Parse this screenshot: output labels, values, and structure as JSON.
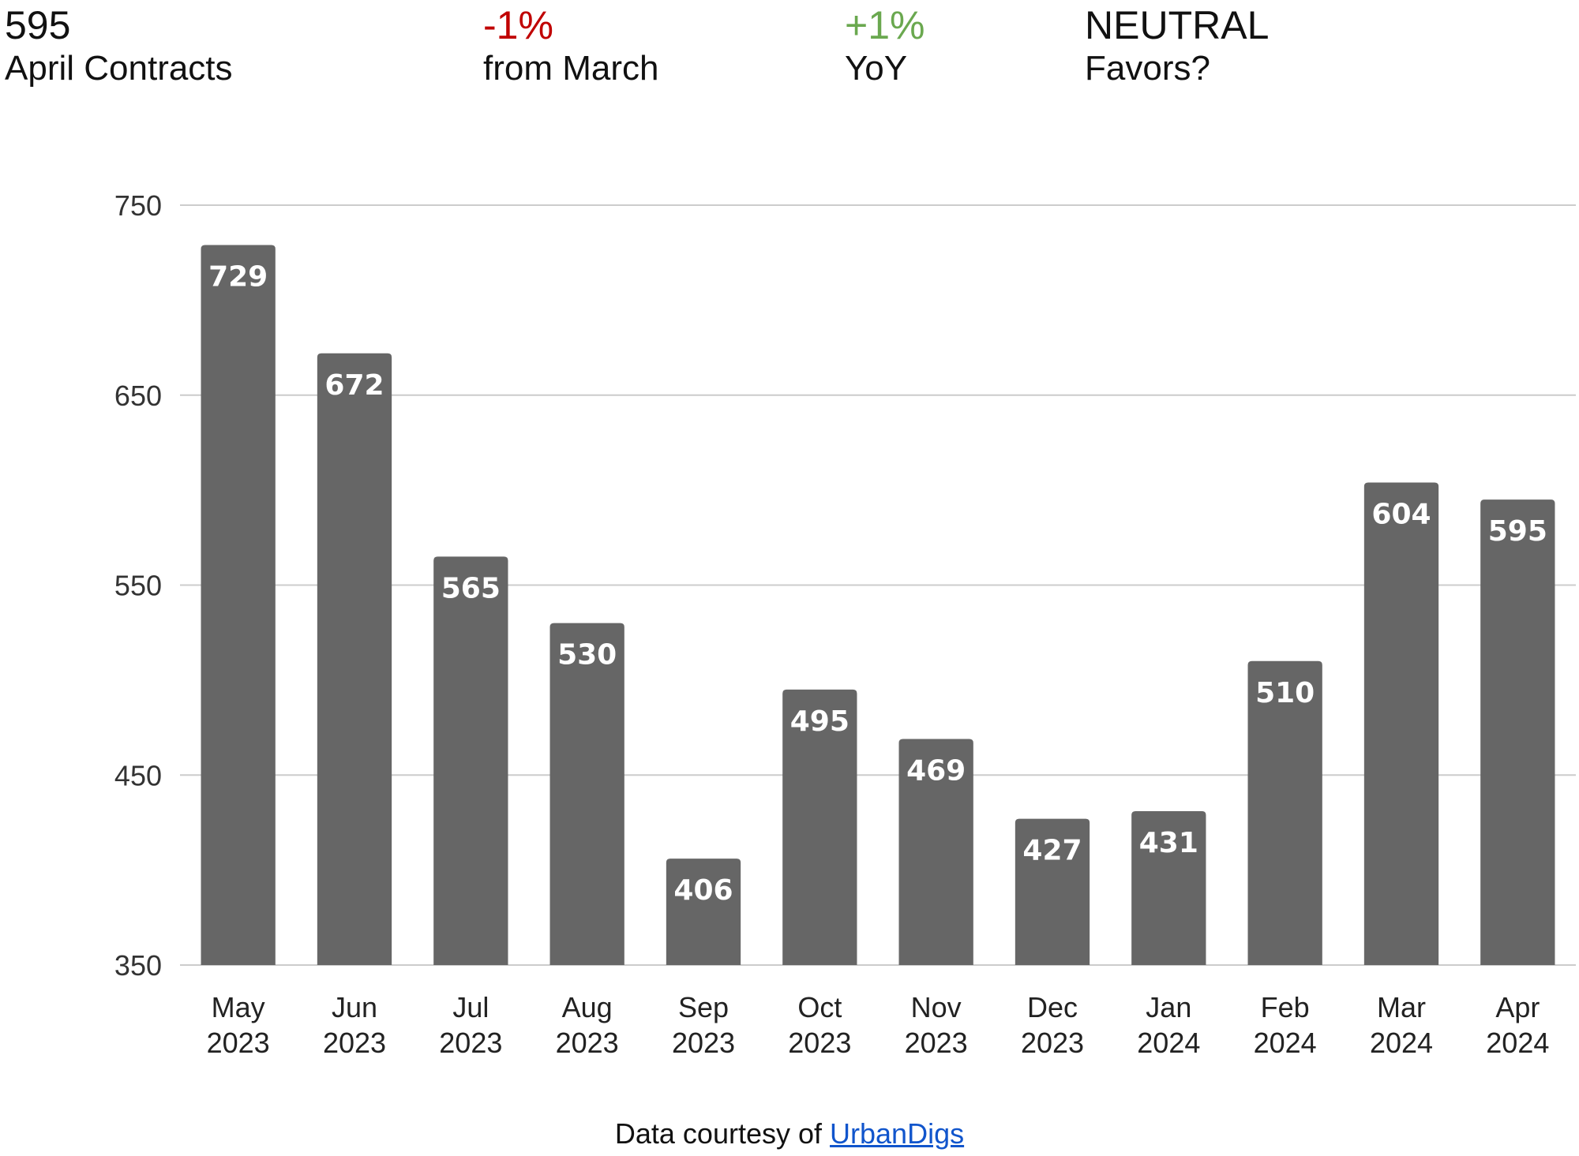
{
  "header": {
    "stats": [
      {
        "value": "595",
        "label": "April Contracts",
        "color": "#111111"
      },
      {
        "value": "-1%",
        "label": "from March",
        "color": "#c00000"
      },
      {
        "value": "+1%",
        "label": "YoY",
        "color": "#6aa84f"
      },
      {
        "value": "NEUTRAL",
        "label": "Favors?",
        "color": "#111111"
      }
    ]
  },
  "footer": {
    "prefix": "Data courtesy of ",
    "link_text": "UrbanDigs"
  },
  "chart_data": {
    "type": "bar",
    "title": "",
    "xlabel": "",
    "ylabel": "",
    "categories": [
      [
        "May",
        "2023"
      ],
      [
        "Jun",
        "2023"
      ],
      [
        "Jul",
        "2023"
      ],
      [
        "Aug",
        "2023"
      ],
      [
        "Sep",
        "2023"
      ],
      [
        "Oct",
        "2023"
      ],
      [
        "Nov",
        "2023"
      ],
      [
        "Dec",
        "2023"
      ],
      [
        "Jan",
        "2024"
      ],
      [
        "Feb",
        "2024"
      ],
      [
        "Mar",
        "2024"
      ],
      [
        "Apr",
        "2024"
      ]
    ],
    "values": [
      729,
      672,
      565,
      530,
      406,
      495,
      469,
      427,
      431,
      510,
      604,
      595
    ],
    "ylim": [
      350,
      750
    ],
    "yticks": [
      350,
      450,
      550,
      650,
      750
    ],
    "grid": true,
    "bar_color": "#666666",
    "label_color": "#ffffff"
  }
}
